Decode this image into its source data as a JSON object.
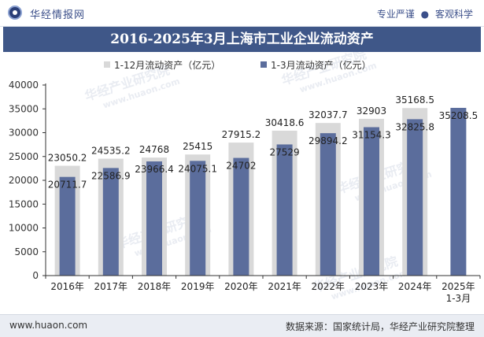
{
  "header": {
    "brand": "华经情报网",
    "slogan_left": "专业严谨",
    "slogan_dot": "●",
    "slogan_right": "客观科学"
  },
  "footer": {
    "website": "www.huaon.com",
    "source": "数据来源：国家统计局，华经产业研究院整理"
  },
  "watermark": {
    "cn": "华经产业研究院",
    "en": "www.huaon.com"
  },
  "colors": {
    "title_bg": "#3f5788",
    "series_full_year": "#d9d9d9",
    "series_q1": "#5b6d9c"
  },
  "chart_data": {
    "type": "bar",
    "title": "2016-2025年3月上海市工业企业流动资产",
    "categories": [
      "2016年",
      "2017年",
      "2018年",
      "2019年",
      "2020年",
      "2021年",
      "2022年",
      "2023年",
      "2024年",
      "2025年\n1-3月"
    ],
    "series": [
      {
        "name": "1-12月流动资产（亿元）",
        "values": [
          23050.2,
          24535.2,
          24768,
          25415,
          27915.2,
          30418.6,
          32037.7,
          32903,
          35168.5,
          null
        ],
        "labels": [
          "23050.2",
          "24535.2",
          "24768",
          "25415",
          "27915.2",
          "30418.6",
          "32037.7",
          "32903",
          "35168.5",
          ""
        ]
      },
      {
        "name": "1-3月流动资产（亿元）",
        "values": [
          20711.7,
          22586.9,
          23966.4,
          24075.1,
          24702,
          27529,
          29894.2,
          31154.3,
          32825.8,
          35208.5
        ],
        "labels": [
          "20711.7",
          "22586.9",
          "23966.4",
          "24075.1",
          "24702",
          "27529",
          "29894.2",
          "31154.3",
          "32825.8",
          "35208.5"
        ]
      }
    ],
    "ylim": [
      0,
      40000
    ],
    "yticks": [
      "0",
      "5000",
      "10000",
      "15000",
      "20000",
      "25000",
      "30000",
      "35000",
      "40000"
    ],
    "legend_position": "top-center",
    "grid": false
  }
}
